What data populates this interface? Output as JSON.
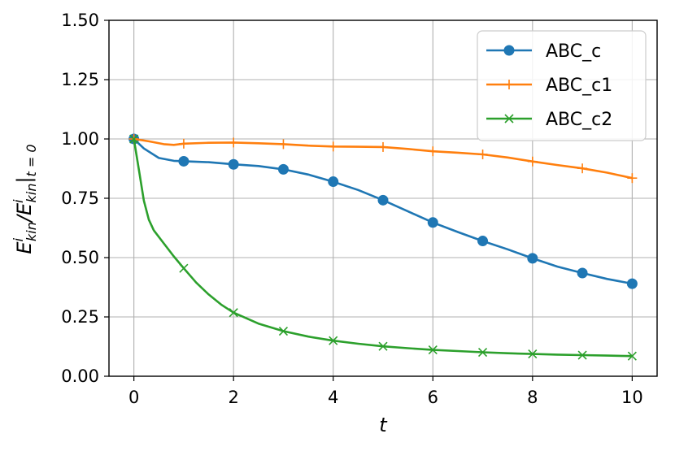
{
  "chart_data": {
    "type": "line",
    "xlabel": "t",
    "ylabel": {
      "main": "E",
      "sup": "i",
      "sub": "kin",
      "middle": "/E",
      "sup2": "i",
      "sub2": "kin",
      "tail": "|",
      "tail_sub": "t = 0"
    },
    "xlim": [
      -0.5,
      10.5
    ],
    "ylim": [
      0.0,
      1.5
    ],
    "xticks": [
      0,
      2,
      4,
      6,
      8,
      10
    ],
    "yticks": [
      0.0,
      0.25,
      0.5,
      0.75,
      1.0,
      1.25,
      1.5
    ],
    "xtick_labels": [
      "0",
      "2",
      "4",
      "6",
      "8",
      "10"
    ],
    "ytick_labels": [
      "0.00",
      "0.25",
      "0.50",
      "0.75",
      "1.00",
      "1.25",
      "1.50"
    ],
    "grid": true,
    "legend_position": "top-right",
    "series": [
      {
        "name": "ABC_c",
        "color": "#1f77b4",
        "marker": "circle",
        "x": [
          0,
          0.2,
          0.5,
          0.8,
          1,
          1.5,
          2,
          2.5,
          3,
          3.5,
          4,
          4.5,
          5,
          5.5,
          6,
          6.5,
          7,
          7.5,
          8,
          8.5,
          9,
          9.5,
          10
        ],
        "y": [
          1.0,
          0.96,
          0.92,
          0.908,
          0.906,
          0.902,
          0.893,
          0.886,
          0.872,
          0.85,
          0.82,
          0.785,
          0.742,
          0.695,
          0.648,
          0.608,
          0.57,
          0.535,
          0.497,
          0.462,
          0.435,
          0.41,
          0.39
        ],
        "marker_x": [
          0,
          1,
          2,
          3,
          4,
          5,
          6,
          7,
          8,
          9,
          10
        ],
        "marker_y": [
          1.0,
          0.906,
          0.893,
          0.872,
          0.82,
          0.742,
          0.648,
          0.57,
          0.497,
          0.435,
          0.39
        ]
      },
      {
        "name": "ABC_c1",
        "color": "#ff7f0e",
        "marker": "plus",
        "x": [
          0,
          0.3,
          0.6,
          0.8,
          1,
          1.5,
          2,
          2.5,
          3,
          3.5,
          4,
          4.5,
          5,
          5.5,
          6,
          6.5,
          7,
          7.5,
          8,
          8.5,
          9,
          9.5,
          10
        ],
        "y": [
          1.0,
          0.99,
          0.978,
          0.975,
          0.98,
          0.984,
          0.985,
          0.982,
          0.978,
          0.972,
          0.968,
          0.967,
          0.966,
          0.958,
          0.948,
          0.942,
          0.935,
          0.922,
          0.905,
          0.89,
          0.876,
          0.858,
          0.835
        ],
        "marker_x": [
          0,
          1,
          2,
          3,
          4,
          5,
          6,
          7,
          8,
          9,
          10
        ],
        "marker_y": [
          1.0,
          0.98,
          0.985,
          0.978,
          0.968,
          0.966,
          0.948,
          0.935,
          0.905,
          0.876,
          0.835
        ]
      },
      {
        "name": "ABC_c2",
        "color": "#2ca02c",
        "marker": "x",
        "x": [
          0,
          0.1,
          0.2,
          0.3,
          0.4,
          0.6,
          0.8,
          1,
          1.25,
          1.5,
          1.75,
          2,
          2.5,
          3,
          3.5,
          4,
          4.5,
          5,
          5.5,
          6,
          6.5,
          7,
          7.5,
          8,
          8.5,
          9,
          9.5,
          10
        ],
        "y": [
          1.0,
          0.87,
          0.74,
          0.66,
          0.615,
          0.56,
          0.505,
          0.455,
          0.395,
          0.345,
          0.302,
          0.268,
          0.222,
          0.19,
          0.167,
          0.15,
          0.137,
          0.126,
          0.118,
          0.111,
          0.106,
          0.101,
          0.097,
          0.094,
          0.091,
          0.089,
          0.087,
          0.085
        ],
        "marker_x": [
          0,
          1,
          2,
          3,
          4,
          5,
          6,
          7,
          8,
          9,
          10
        ],
        "marker_y": [
          1.0,
          0.455,
          0.268,
          0.19,
          0.15,
          0.126,
          0.111,
          0.101,
          0.094,
          0.089,
          0.085
        ]
      }
    ]
  }
}
